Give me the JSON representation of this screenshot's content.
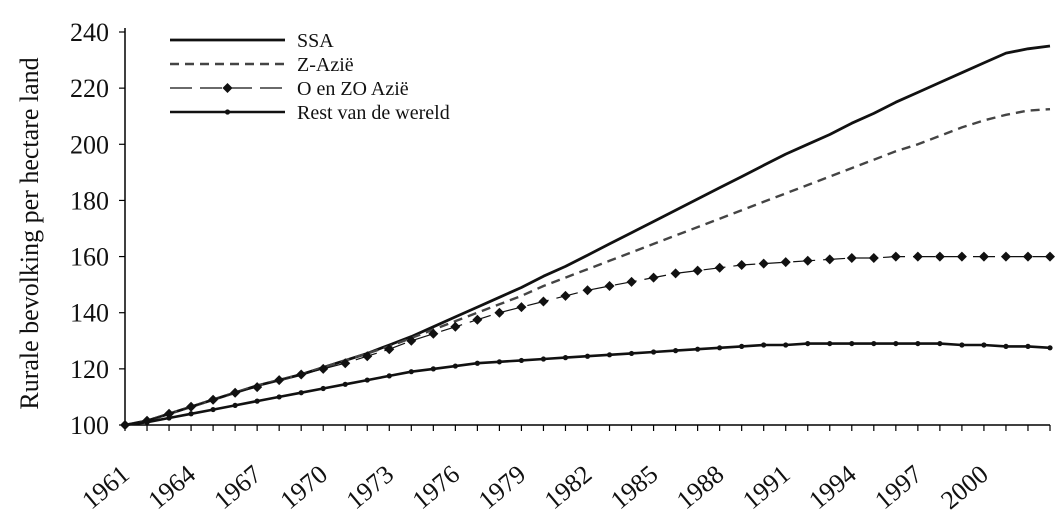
{
  "chart_data": {
    "type": "line",
    "title": "",
    "xlabel": "",
    "ylabel": "Rurale bevolking per hectare land",
    "ylim": [
      100,
      240
    ],
    "xlim": [
      1961,
      2003
    ],
    "y_ticks": [
      "100",
      "120",
      "140",
      "160",
      "180",
      "200",
      "220",
      "240"
    ],
    "x_ticks": [
      "1961",
      "1964",
      "1967",
      "1970",
      "1973",
      "1976",
      "1979",
      "1982",
      "1985",
      "1988",
      "1991",
      "1994",
      "1997",
      "2000"
    ],
    "legend_position": "top-left",
    "grid": false,
    "x": [
      1961,
      1962,
      1963,
      1964,
      1965,
      1966,
      1967,
      1968,
      1969,
      1970,
      1971,
      1972,
      1973,
      1974,
      1975,
      1976,
      1977,
      1978,
      1979,
      1980,
      1981,
      1982,
      1983,
      1984,
      1985,
      1986,
      1987,
      1988,
      1989,
      1990,
      1991,
      1992,
      1993,
      1994,
      1995,
      1996,
      1997,
      1998,
      1999,
      2000,
      2001,
      2002,
      2003
    ],
    "series": [
      {
        "name": "SSA",
        "style": "solid",
        "color": "#111111",
        "values": [
          100.0,
          101.5,
          104.0,
          106.5,
          109.0,
          111.5,
          114.0,
          116.0,
          118.0,
          120.5,
          123.0,
          125.5,
          128.5,
          131.5,
          135.0,
          138.5,
          142.0,
          145.5,
          149.0,
          153.0,
          156.5,
          160.5,
          164.5,
          168.5,
          172.5,
          176.5,
          180.5,
          184.5,
          188.5,
          192.5,
          196.5,
          200.0,
          203.5,
          207.5,
          211.0,
          215.0,
          218.5,
          222.0,
          225.5,
          229.0,
          232.5,
          234.0,
          235.0
        ]
      },
      {
        "name": "Z-Azië",
        "style": "dashed",
        "color": "#444444",
        "values": [
          100.0,
          101.5,
          104.0,
          106.5,
          109.0,
          111.5,
          114.0,
          116.0,
          118.0,
          120.5,
          123.0,
          125.5,
          128.0,
          131.0,
          134.0,
          137.0,
          140.0,
          143.0,
          146.0,
          149.5,
          152.5,
          155.5,
          158.5,
          161.5,
          164.5,
          167.5,
          170.5,
          173.5,
          176.5,
          179.5,
          182.5,
          185.5,
          188.5,
          191.5,
          194.5,
          197.5,
          200.0,
          203.0,
          206.0,
          208.5,
          210.5,
          212.0,
          212.5
        ]
      },
      {
        "name": "O en ZO Azië",
        "style": "dash-diamond",
        "color": "#111111",
        "values": [
          100.0,
          101.5,
          104.0,
          106.5,
          109.0,
          111.5,
          113.5,
          116.0,
          118.0,
          120.0,
          122.0,
          124.5,
          127.0,
          130.0,
          132.5,
          135.0,
          137.5,
          140.0,
          142.0,
          144.0,
          146.0,
          148.0,
          149.5,
          151.0,
          152.5,
          154.0,
          155.0,
          156.0,
          157.0,
          157.5,
          158.0,
          158.5,
          159.0,
          159.5,
          159.5,
          160.0,
          160.0,
          160.0,
          160.0,
          160.0,
          160.0,
          160.0,
          160.0
        ]
      },
      {
        "name": "Rest van de wereld",
        "style": "solid-dots",
        "color": "#111111",
        "values": [
          100.0,
          101.0,
          102.5,
          104.0,
          105.5,
          107.0,
          108.5,
          110.0,
          111.5,
          113.0,
          114.5,
          116.0,
          117.5,
          119.0,
          120.0,
          121.0,
          122.0,
          122.5,
          123.0,
          123.5,
          124.0,
          124.5,
          125.0,
          125.5,
          126.0,
          126.5,
          127.0,
          127.5,
          128.0,
          128.5,
          128.5,
          129.0,
          129.0,
          129.0,
          129.0,
          129.0,
          129.0,
          129.0,
          128.5,
          128.5,
          128.0,
          128.0,
          127.5
        ]
      }
    ]
  }
}
